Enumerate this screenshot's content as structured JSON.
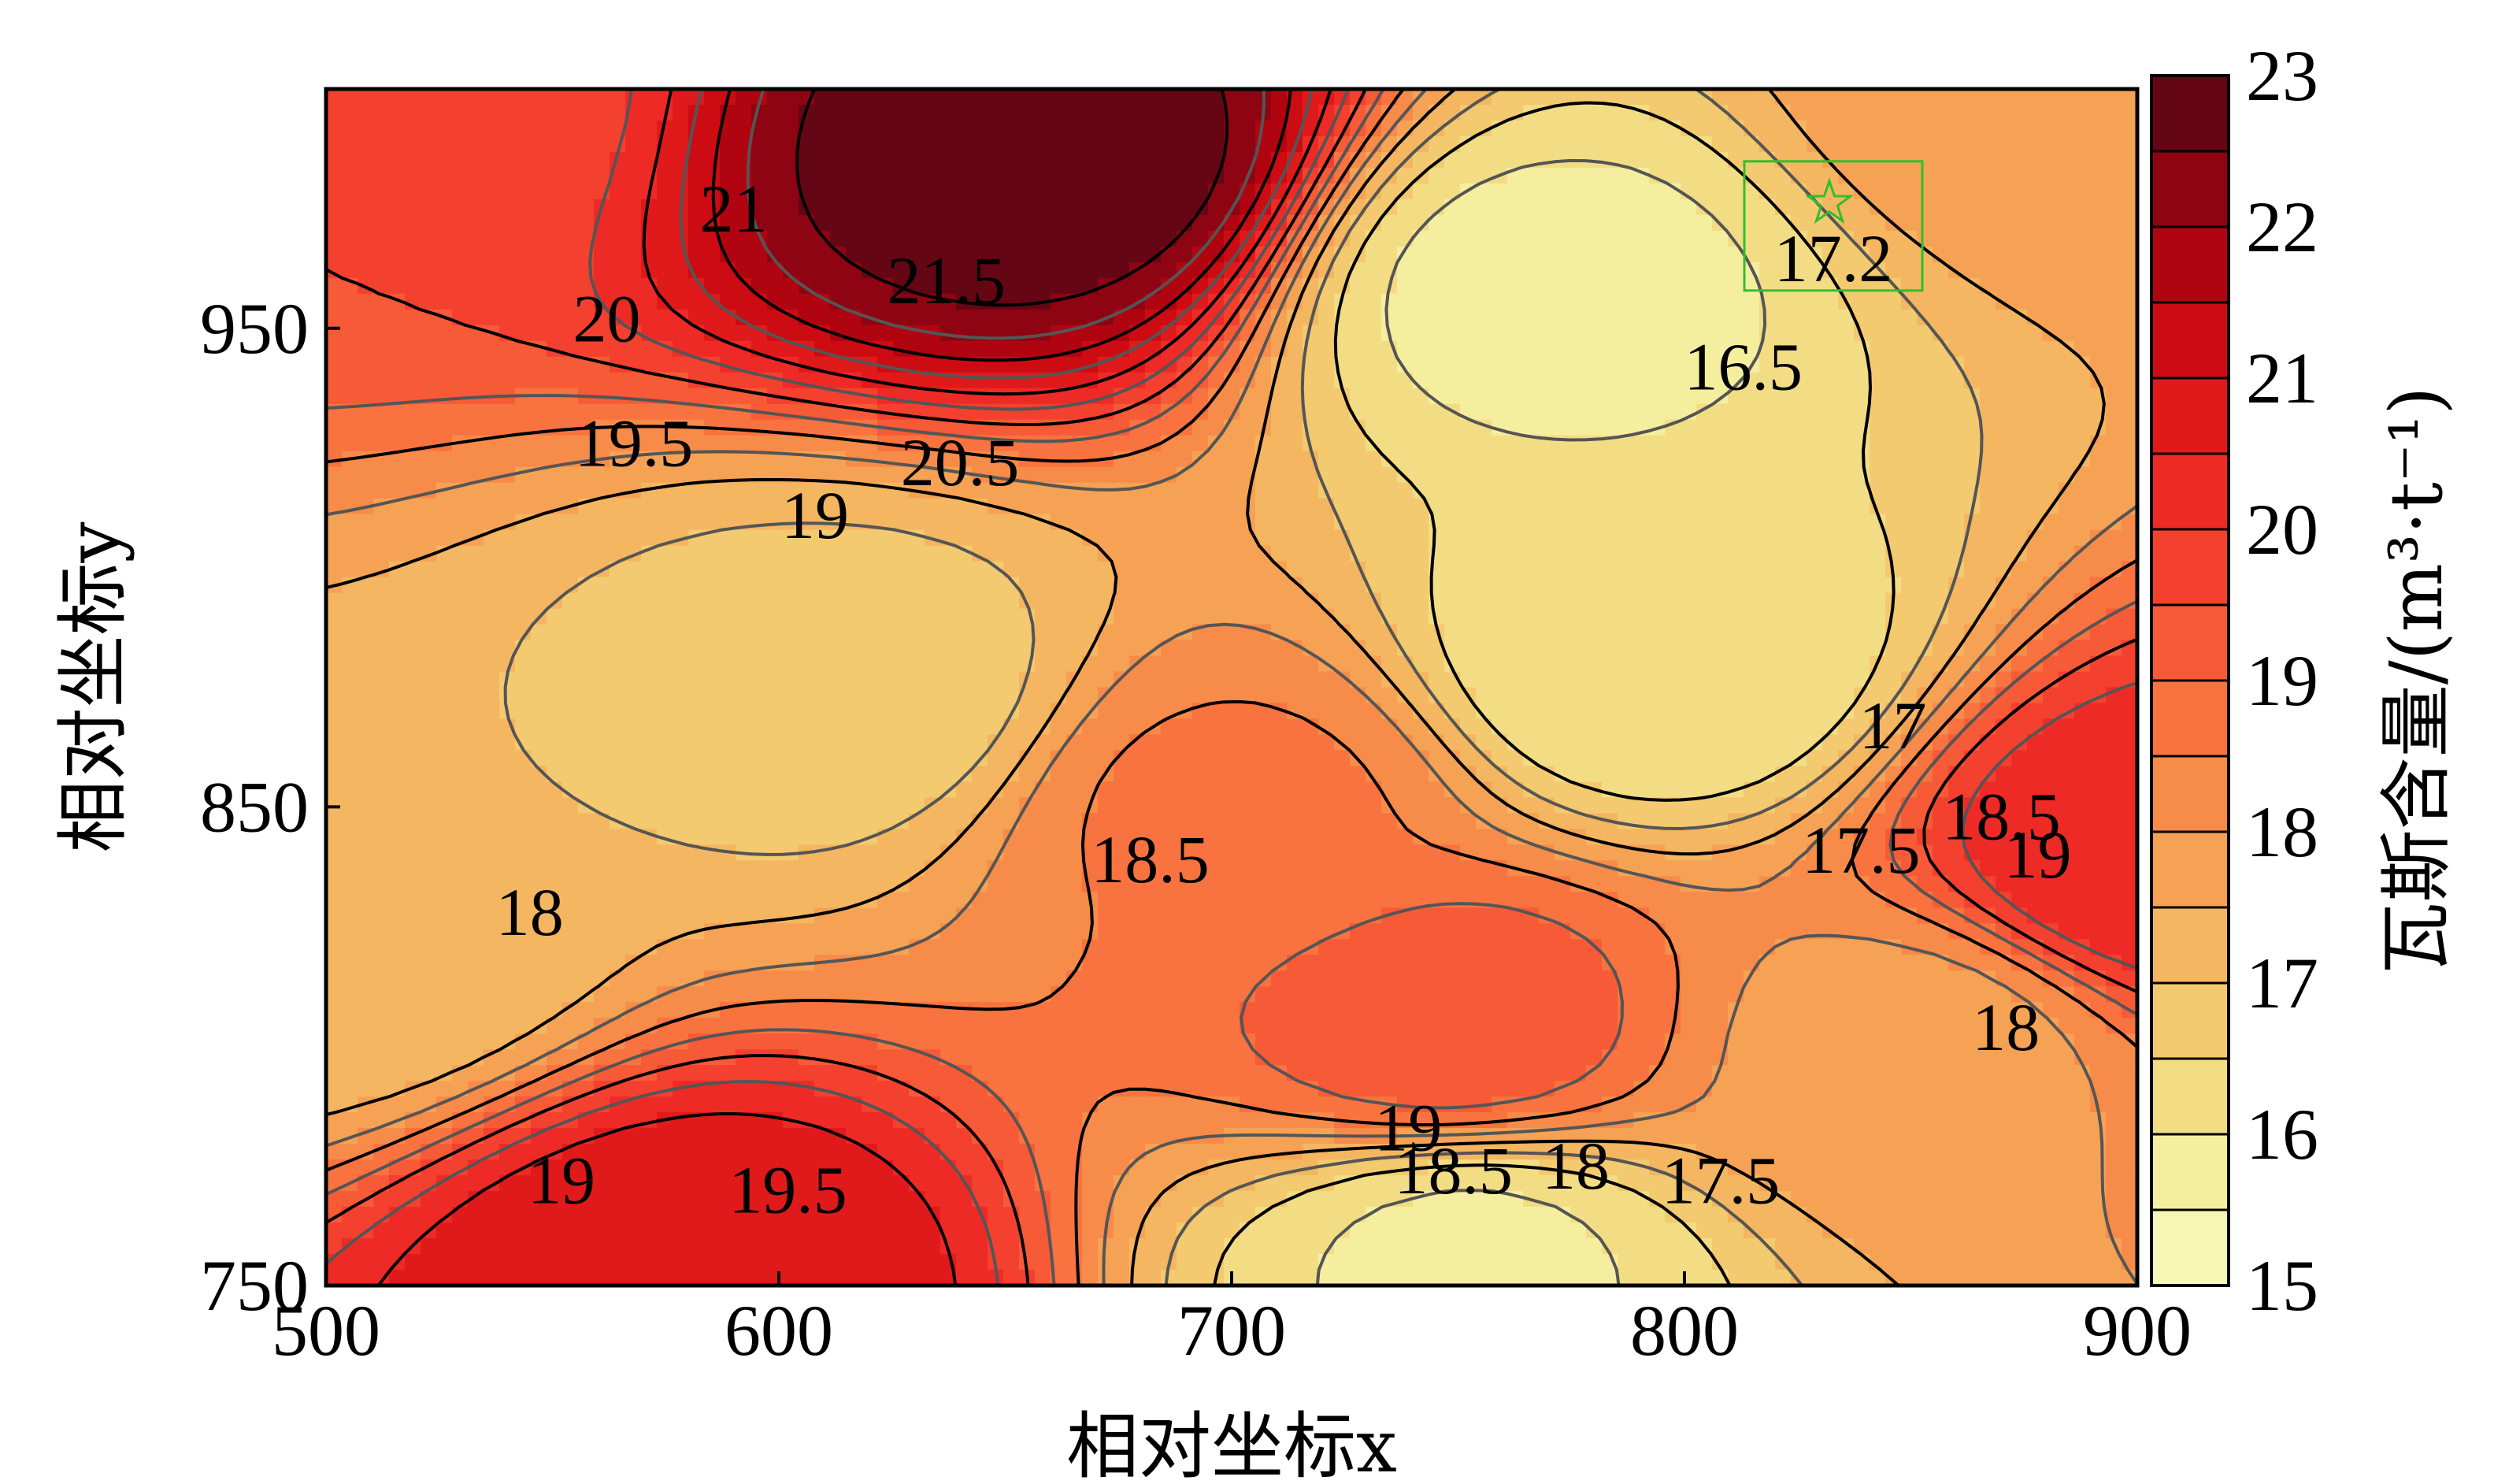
{
  "chart_data": {
    "type": "contour",
    "title": "",
    "xlabel": "相对坐标x",
    "ylabel": "相对坐标y",
    "xlim": [
      500,
      900
    ],
    "ylim": [
      750,
      1000
    ],
    "xticks": [
      "500",
      "600",
      "700",
      "800",
      "900"
    ],
    "yticks": [
      "750",
      "850",
      "950"
    ],
    "contour_interval": 0.5,
    "colorbar": {
      "label": "瓦斯含量/(m³·t⁻¹)",
      "range": [
        15,
        23
      ],
      "ticks": [
        "15",
        "16",
        "17",
        "18",
        "19",
        "20",
        "21",
        "22",
        "23"
      ],
      "colors": [
        "#f6f7b4",
        "#f5ee9f",
        "#f3dd84",
        "#f3ca6f",
        "#f4b660",
        "#f6a254",
        "#f78b49",
        "#f8733f",
        "#f75a37",
        "#f4402f",
        "#ee2a27",
        "#e01a1a",
        "#cc0c12",
        "#b00510",
        "#8e0412",
        "#650615"
      ]
    },
    "contour_labels": [
      {
        "x": 590,
        "y": 975,
        "text": "21"
      },
      {
        "x": 637,
        "y": 960,
        "text": "21.5"
      },
      {
        "x": 562,
        "y": 952,
        "text": "20"
      },
      {
        "x": 568,
        "y": 926,
        "text": "19.5"
      },
      {
        "x": 640,
        "y": 922,
        "text": "20.5"
      },
      {
        "x": 608,
        "y": 911,
        "text": "19"
      },
      {
        "x": 682,
        "y": 839,
        "text": "18.5"
      },
      {
        "x": 545,
        "y": 828,
        "text": "18"
      },
      {
        "x": 552,
        "y": 772,
        "text": "19"
      },
      {
        "x": 602,
        "y": 770,
        "text": "19.5"
      },
      {
        "x": 739,
        "y": 783,
        "text": "19"
      },
      {
        "x": 749,
        "y": 774,
        "text": "18.5"
      },
      {
        "x": 776,
        "y": 775,
        "text": "18"
      },
      {
        "x": 808,
        "y": 772,
        "text": "17.5"
      },
      {
        "x": 813,
        "y": 942,
        "text": "16.5"
      },
      {
        "x": 846,
        "y": 867,
        "text": "17"
      },
      {
        "x": 839,
        "y": 841,
        "text": "17.5"
      },
      {
        "x": 870,
        "y": 848,
        "text": "18.5"
      },
      {
        "x": 878,
        "y": 840,
        "text": "19"
      },
      {
        "x": 871,
        "y": 804,
        "text": "18"
      }
    ],
    "highlight": {
      "x": 832,
      "y": 963,
      "marker": "star",
      "label": "17.2"
    },
    "field_centers": [
      {
        "x": 658,
        "y": 985,
        "value": 22.9
      },
      {
        "x": 580,
        "y": 751,
        "value": 21.0
      },
      {
        "x": 903,
        "y": 840,
        "value": 20.5
      },
      {
        "x": 505,
        "y": 1000,
        "value": 19.5
      },
      {
        "x": 748,
        "y": 804,
        "value": 19.3
      },
      {
        "x": 615,
        "y": 874,
        "value": 16.7
      },
      {
        "x": 500,
        "y": 823,
        "value": 17.0
      },
      {
        "x": 770,
        "y": 958,
        "value": 15.8
      },
      {
        "x": 793,
        "y": 880,
        "value": 16.0
      },
      {
        "x": 752,
        "y": 756,
        "value": 15.9
      },
      {
        "x": 700,
        "y": 850,
        "value": 18.6
      },
      {
        "x": 850,
        "y": 800,
        "value": 17.8
      },
      {
        "x": 880,
        "y": 1000,
        "value": 17.9
      }
    ]
  }
}
